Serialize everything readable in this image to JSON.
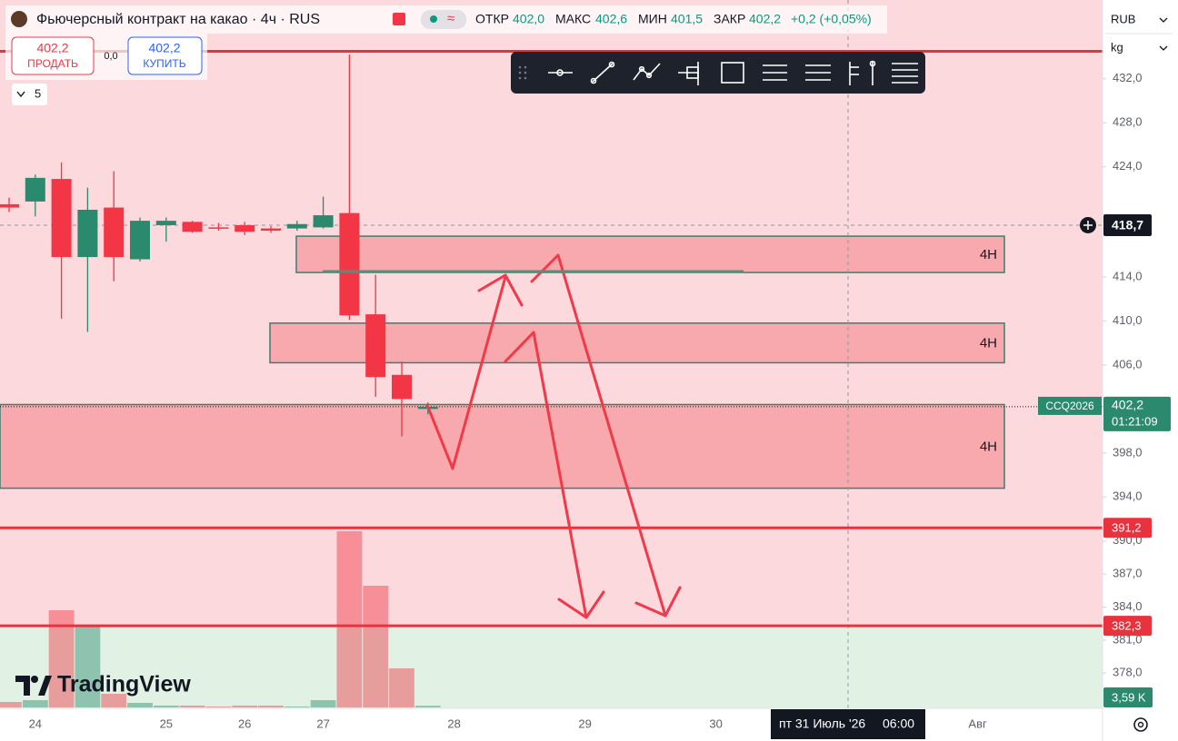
{
  "chart_data": {
    "type": "candlestick",
    "title": "Фьючерсный контракт на какао · 4ч · RUS",
    "header": {
      "open_key": "ОТКР",
      "open": "402,0",
      "high_key": "МАКС",
      "high": "402,6",
      "low_key": "МИН",
      "low": "401,5",
      "close_key": "ЗАКР",
      "close": "402,2",
      "change": "+0,2 (+0,05%)"
    },
    "trade": {
      "sell_price": "402,2",
      "sell": "ПРОДАТЬ",
      "spread": "0,0",
      "buy_price": "402,2",
      "buy": "КУПИТЬ"
    },
    "interval_count": "5",
    "currency": "RUB",
    "unit": "kg",
    "brand": "TradingView",
    "categories": [
      null,
      "24",
      null,
      null,
      null,
      null,
      "25",
      null,
      null,
      "26",
      null,
      null,
      "27",
      null,
      null,
      null,
      null,
      "28",
      null,
      null,
      null,
      null,
      "29",
      null,
      null,
      null,
      null,
      "30",
      null,
      null,
      null,
      null,
      null,
      null,
      null,
      null,
      null,
      "Авг"
    ],
    "open": [
      420.6,
      420.85,
      422.9,
      415.8,
      420.3,
      415.6,
      418.7,
      419.0,
      418.5,
      418.7,
      418.4,
      418.4,
      418.5,
      419.8,
      410.6,
      405.1,
      402.0,
      null,
      null,
      null,
      null,
      null,
      null,
      null,
      null,
      null,
      null,
      null,
      null,
      null,
      null,
      null,
      null,
      null,
      null,
      null,
      null,
      null
    ],
    "high": [
      421.2,
      423.3,
      424.4,
      422.1,
      423.6,
      419.4,
      419.4,
      419.1,
      418.9,
      419.0,
      418.6,
      419.1,
      421.3,
      434.2,
      414.2,
      406.3,
      402.6,
      null,
      null,
      null,
      null,
      null,
      null,
      null,
      null,
      null,
      null,
      null,
      null,
      null,
      null,
      null,
      null,
      null,
      null,
      null,
      null,
      null
    ],
    "low": [
      419.9,
      419.5,
      410.2,
      409.0,
      413.6,
      415.4,
      417.2,
      418.0,
      418.2,
      417.8,
      418.0,
      418.2,
      418.4,
      410.1,
      403.1,
      399.5,
      401.5,
      null,
      null,
      null,
      null,
      null,
      null,
      null,
      null,
      null,
      null,
      null,
      null,
      null,
      null,
      null,
      null,
      null,
      null,
      null,
      null,
      null
    ],
    "close": [
      420.3,
      423.0,
      415.8,
      420.1,
      415.8,
      419.1,
      419.1,
      418.1,
      418.4,
      418.1,
      418.2,
      418.8,
      419.6,
      410.5,
      404.9,
      402.9,
      402.2,
      null,
      null,
      null,
      null,
      null,
      null,
      null,
      null,
      null,
      null,
      null,
      null,
      null,
      null,
      null,
      null,
      null,
      null,
      null,
      null,
      null
    ],
    "up_color": "#2b8a6e",
    "down_color": "#f23645",
    "ylim": [
      374.8,
      438.5
    ],
    "yticks": [
      {
        "value": 432,
        "label": "432,0"
      },
      {
        "value": 428,
        "label": "428,0"
      },
      {
        "value": 424,
        "label": "424,0"
      },
      {
        "value": 414,
        "label": "414,0"
      },
      {
        "value": 410,
        "label": "410,0"
      },
      {
        "value": 406,
        "label": "406,0"
      },
      {
        "value": 398,
        "label": "398,0"
      },
      {
        "value": 394,
        "label": "394,0"
      },
      {
        "value": 390,
        "label": "390,0"
      },
      {
        "value": 387,
        "label": "387,0"
      },
      {
        "value": 384,
        "label": "384,0"
      },
      {
        "value": 381,
        "label": "381,0"
      },
      {
        "value": 378,
        "label": "378,0"
      }
    ],
    "grid": false,
    "volume": {
      "values": [
        12,
        16,
        214,
        180,
        30,
        10,
        4,
        4,
        2,
        4,
        4,
        2,
        16,
        388,
        268,
        86,
        3.59,
        null,
        null,
        null,
        null,
        null,
        null,
        null,
        null,
        null,
        null,
        null,
        null,
        null,
        null,
        null,
        null,
        null,
        null,
        null,
        null,
        null
      ],
      "ylim": [
        0,
        400
      ],
      "last_label": "3,59 K"
    },
    "zones": [
      {
        "label": "4H",
        "top": 417.7,
        "bottom": 414.4
      },
      {
        "label": "4H",
        "top": 409.8,
        "bottom": 406.2
      },
      {
        "label": "4H",
        "top": 402.4,
        "bottom": 394.8
      }
    ],
    "hlines": [
      {
        "value": 434.5
      },
      {
        "value": 391.2,
        "label": "391,2"
      },
      {
        "value": 382.3,
        "label": "382,3"
      }
    ],
    "hline_color": "#e8333f",
    "crosshair": {
      "price": 418.7,
      "price_label": "418,7",
      "date": "пт 31 Июль '26",
      "time": "06:00"
    },
    "last": {
      "value": 402.2,
      "label": "402,2",
      "symbol": "CCQ2026",
      "countdown": "01:21:09"
    }
  }
}
